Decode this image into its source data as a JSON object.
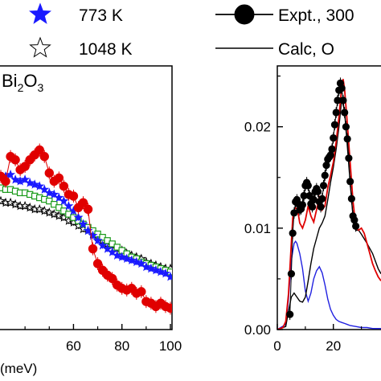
{
  "chart_data": [
    {
      "type": "scatter",
      "panel": "left",
      "annotation": {
        "base": "Bi",
        "sub1": "2",
        "mid": "O",
        "sub2": "3"
      },
      "xlabel": "(meV)",
      "xlim": [
        30,
        100
      ],
      "x_ticks": [
        "60",
        "80",
        "100"
      ],
      "x_tick_values": [
        60,
        80,
        100
      ],
      "legend": [
        {
          "label": "773 K",
          "marker": "star-filled",
          "color": "#1a1aff"
        },
        {
          "label": "1048 K",
          "marker": "star-open",
          "color": "#000000"
        }
      ],
      "series": [
        {
          "name": "",
          "color": "#e00000",
          "marker": "circle",
          "x": [
            30,
            32,
            34,
            36,
            38,
            40,
            42,
            44,
            46,
            48,
            50,
            52,
            54,
            56,
            58,
            60,
            62,
            64,
            66,
            68,
            70,
            72,
            74,
            76,
            78,
            80,
            82,
            84,
            86,
            88,
            90,
            92,
            94,
            96,
            98,
            100
          ],
          "y": [
            0.0118,
            0.0115,
            0.013,
            0.0128,
            0.0122,
            0.0124,
            0.0128,
            0.0131,
            0.0134,
            0.013,
            0.012,
            0.0115,
            0.0117,
            0.0112,
            0.0107,
            0.0106,
            0.0099,
            0.0102,
            0.0098,
            0.0074,
            0.0065,
            0.0061,
            0.0058,
            0.0056,
            0.0052,
            0.005,
            0.0049,
            0.005,
            0.0047,
            0.0048,
            0.0042,
            0.0041,
            0.0039,
            0.0041,
            0.0039,
            0.0038
          ]
        },
        {
          "name": "773 K",
          "color": "#1a1aff",
          "marker": "star-filled",
          "x": [
            30,
            32,
            34,
            36,
            38,
            40,
            42,
            44,
            46,
            48,
            50,
            52,
            54,
            56,
            58,
            60,
            62,
            64,
            66,
            68,
            70,
            72,
            74,
            76,
            78,
            80,
            82,
            84,
            86,
            88,
            90,
            92,
            94,
            96,
            98,
            100
          ],
          "y": [
            0.0118,
            0.0118,
            0.0119,
            0.0116,
            0.0115,
            0.0116,
            0.0114,
            0.0113,
            0.0112,
            0.011,
            0.0108,
            0.0107,
            0.0105,
            0.0103,
            0.01,
            0.0097,
            0.0093,
            0.0089,
            0.0085,
            0.0082,
            0.0079,
            0.0076,
            0.0074,
            0.0072,
            0.007,
            0.0069,
            0.0068,
            0.0067,
            0.0066,
            0.0065,
            0.0063,
            0.0062,
            0.0061,
            0.006,
            0.0059,
            0.0057
          ]
        },
        {
          "name": "",
          "color": "#1a9a1a",
          "marker": "square-open",
          "x": [
            30,
            32,
            34,
            36,
            38,
            40,
            42,
            44,
            46,
            48,
            50,
            52,
            54,
            56,
            58,
            60,
            62,
            64,
            66,
            68,
            70,
            72,
            74,
            76,
            78,
            80,
            82,
            84,
            86,
            88,
            90,
            92,
            94,
            96,
            98,
            100
          ],
          "y": [
            0.0111,
            0.011,
            0.011,
            0.0109,
            0.0108,
            0.0108,
            0.0107,
            0.0106,
            0.0105,
            0.0104,
            0.0103,
            0.0101,
            0.0099,
            0.0097,
            0.0095,
            0.0093,
            0.0091,
            0.0089,
            0.0087,
            0.0085,
            0.0083,
            0.0081,
            0.0079,
            0.0077,
            0.0075,
            0.0073,
            0.0071,
            0.0069,
            0.0068,
            0.0066,
            0.0065,
            0.0064,
            0.0063,
            0.0062,
            0.0061,
            0.006
          ]
        },
        {
          "name": "1048 K",
          "color": "#000000",
          "marker": "star-open",
          "x": [
            30,
            32,
            34,
            36,
            38,
            40,
            42,
            44,
            46,
            48,
            50,
            52,
            54,
            56,
            58,
            60,
            62,
            64,
            66,
            68,
            70,
            72,
            74,
            76,
            78,
            80,
            82,
            84,
            86,
            88,
            90,
            92,
            94,
            96,
            98,
            100
          ],
          "y": [
            0.0103,
            0.0102,
            0.0102,
            0.0101,
            0.01,
            0.01,
            0.0099,
            0.0098,
            0.0098,
            0.0097,
            0.0096,
            0.0095,
            0.0094,
            0.0093,
            0.0091,
            0.009,
            0.0088,
            0.0086,
            0.0085,
            0.0083,
            0.0081,
            0.0079,
            0.0077,
            0.0076,
            0.0074,
            0.0073,
            0.0071,
            0.007,
            0.0069,
            0.0068,
            0.0066,
            0.0065,
            0.0064,
            0.0063,
            0.0062,
            0.0062
          ]
        }
      ]
    },
    {
      "type": "line",
      "panel": "right",
      "xlim": [
        0,
        37
      ],
      "ylim": [
        0,
        0.026
      ],
      "x_ticks": [
        "0",
        "20"
      ],
      "x_tick_values": [
        0,
        20
      ],
      "y_ticks": [
        "0.00",
        "0.01",
        "0.02"
      ],
      "y_tick_values": [
        0.0,
        0.01,
        0.02
      ],
      "legend": [
        {
          "label": "Expt., 300",
          "marker": "circle-line",
          "color": "#000000"
        },
        {
          "label": "Calc, O",
          "marker": "line",
          "color": "#000000"
        }
      ],
      "series": [
        {
          "name": "Expt., 300",
          "color": "#000000",
          "marker": "circle",
          "x": [
            4.5,
            5,
            5.5,
            6,
            6.5,
            7,
            7.5,
            8,
            8.5,
            9,
            9.5,
            10,
            10.5,
            11,
            11.5,
            12,
            12.5,
            13,
            13.5,
            14,
            14.5,
            15,
            15.5,
            16,
            16.5,
            17,
            17.5,
            18,
            18.5,
            19,
            19.5,
            20,
            20.5,
            21,
            21.5,
            22,
            22.5,
            23,
            23.5,
            24,
            24.5,
            25,
            25.5,
            26,
            26.5,
            27,
            27.5,
            28
          ],
          "y": [
            0.0015,
            0.0055,
            0.0095,
            0.0115,
            0.0126,
            0.0128,
            0.0124,
            0.0118,
            0.0119,
            0.0123,
            0.0132,
            0.0142,
            0.0145,
            0.0142,
            0.0132,
            0.0124,
            0.0121,
            0.0128,
            0.0136,
            0.0139,
            0.0136,
            0.0126,
            0.0121,
            0.0129,
            0.0142,
            0.0152,
            0.0162,
            0.0168,
            0.017,
            0.0172,
            0.0178,
            0.0189,
            0.0202,
            0.0214,
            0.0226,
            0.0236,
            0.0243,
            0.0238,
            0.0226,
            0.0214,
            0.02,
            0.0188,
            0.0169,
            0.0146,
            0.0129,
            0.0112,
            0.0108,
            0.0102
          ]
        },
        {
          "name": "",
          "color": "#e00000",
          "marker": "none",
          "x": [
            0,
            2,
            3,
            4,
            5,
            5.5,
            6,
            6.5,
            7,
            7.5,
            8,
            9,
            10,
            11,
            12,
            13,
            14,
            15,
            16,
            17,
            18,
            19,
            20,
            21,
            22,
            23,
            23.5,
            24,
            25,
            26,
            27,
            28,
            29,
            30,
            31,
            32,
            33,
            34,
            35,
            36,
            37
          ],
          "y": [
            0.0,
            0.0002,
            0.0008,
            0.0035,
            0.0085,
            0.011,
            0.0118,
            0.012,
            0.0119,
            0.0114,
            0.0105,
            0.01,
            0.0108,
            0.0122,
            0.0112,
            0.0106,
            0.0118,
            0.0132,
            0.0118,
            0.0122,
            0.014,
            0.0152,
            0.0165,
            0.0185,
            0.021,
            0.024,
            0.0247,
            0.0237,
            0.0202,
            0.0165,
            0.0127,
            0.0102,
            0.0098,
            0.01,
            0.0095,
            0.0085,
            0.0075,
            0.0065,
            0.0058,
            0.0052,
            0.0048
          ]
        },
        {
          "name": "Calc, O",
          "color": "#000000",
          "marker": "none",
          "x": [
            0,
            3,
            4,
            5,
            6,
            7,
            8,
            9,
            10,
            11,
            12,
            13,
            14,
            15,
            16,
            17,
            18,
            19,
            20,
            21,
            22,
            23,
            24,
            25,
            26,
            27,
            28,
            29,
            30,
            32,
            34,
            36,
            37
          ],
          "y": [
            0.0,
            0.0003,
            0.0018,
            0.0032,
            0.0036,
            0.0032,
            0.0028,
            0.0027,
            0.0032,
            0.0048,
            0.0065,
            0.008,
            0.009,
            0.01,
            0.0105,
            0.0112,
            0.0128,
            0.0145,
            0.016,
            0.0178,
            0.02,
            0.0228,
            0.0215,
            0.018,
            0.0145,
            0.0112,
            0.0098,
            0.0098,
            0.0094,
            0.0085,
            0.0075,
            0.006,
            0.0055
          ]
        },
        {
          "name": "",
          "color": "#2020e0",
          "marker": "none",
          "x": [
            0,
            3,
            4,
            5,
            6,
            6.5,
            7,
            8,
            9,
            10,
            11,
            12,
            13,
            14,
            15,
            16,
            17,
            18,
            19,
            20,
            21,
            22,
            23,
            24,
            25,
            26,
            28,
            30,
            32,
            34,
            37
          ],
          "y": [
            0.0,
            0.0005,
            0.003,
            0.0068,
            0.0085,
            0.0087,
            0.0085,
            0.0075,
            0.006,
            0.0038,
            0.0028,
            0.0036,
            0.005,
            0.0058,
            0.0062,
            0.0056,
            0.0044,
            0.003,
            0.002,
            0.0014,
            0.001,
            0.0008,
            0.0007,
            0.0006,
            0.0005,
            0.0004,
            0.0003,
            0.0002,
            0.0002,
            0.0001,
            0.0001
          ]
        }
      ]
    }
  ]
}
